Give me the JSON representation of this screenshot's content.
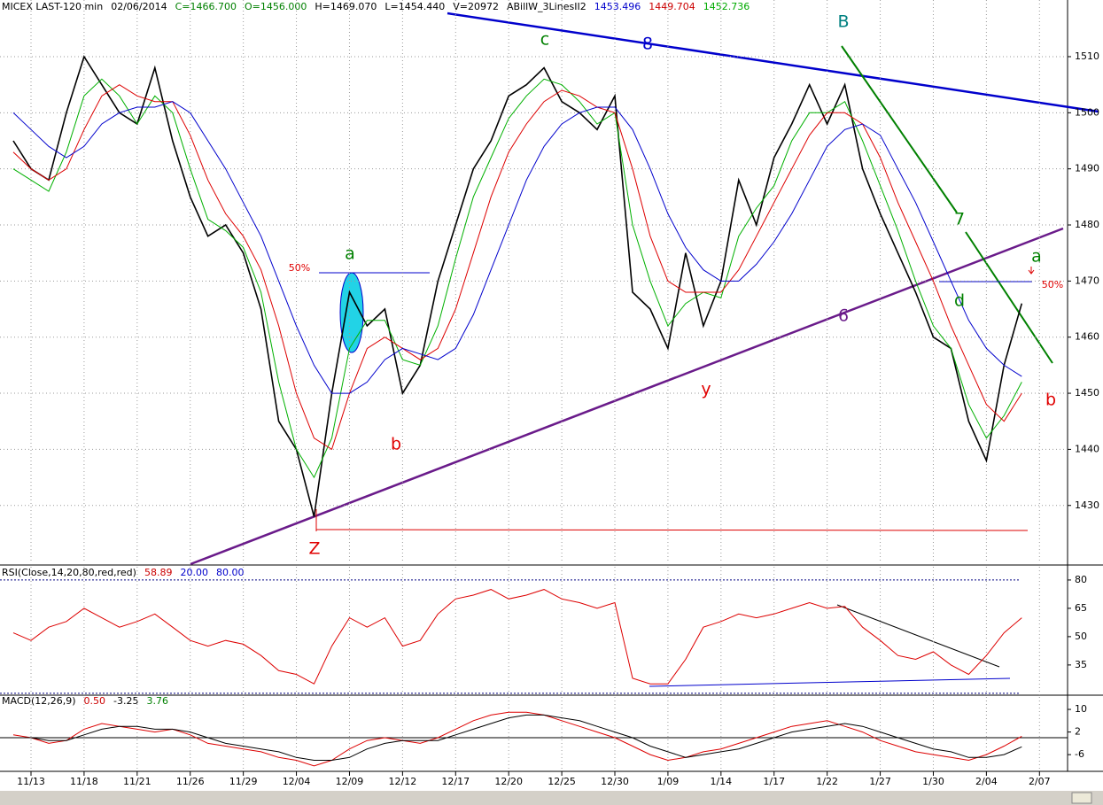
{
  "header": [
    {
      "text": "MICEX LAST-120 min",
      "color": "#000000"
    },
    {
      "text": "02/06/2014",
      "color": "#000000"
    },
    {
      "text": "C=1466.700",
      "color": "#008000"
    },
    {
      "text": "O=1456.000",
      "color": "#008000"
    },
    {
      "text": "H=1469.070",
      "color": "#000000"
    },
    {
      "text": "L=1454.440",
      "color": "#000000"
    },
    {
      "text": "V=20972",
      "color": "#000000"
    },
    {
      "text": "ABillW_3LinesII2",
      "color": "#000000"
    },
    {
      "text": "1453.496",
      "color": "#0000cc"
    },
    {
      "text": "1449.704",
      "color": "#cc0000"
    },
    {
      "text": "1452.736",
      "color": "#00aa00"
    }
  ],
  "annotations": [
    {
      "text": "a",
      "color": "#008000"
    },
    {
      "text": "b",
      "color": "#e00000"
    },
    {
      "text": "c",
      "color": "#008000"
    },
    {
      "text": "B",
      "color": "#008080"
    },
    {
      "text": "y",
      "color": "#e00000"
    },
    {
      "text": "Z",
      "color": "#e00000"
    },
    {
      "text": "a",
      "color": "#008000"
    },
    {
      "text": "b",
      "color": "#e00000"
    },
    {
      "text": "d",
      "color": "#008000"
    },
    {
      "text": "50%",
      "color": "#e00000"
    },
    {
      "text": "50%",
      "color": "#e00000"
    },
    {
      "text": "8",
      "color": "#0000cc"
    },
    {
      "text": "7",
      "color": "#008000"
    },
    {
      "text": "6",
      "color": "#6a1b8a"
    }
  ],
  "chart_data": [
    {
      "type": "line",
      "categories": [
        null,
        "11/13",
        null,
        null,
        "11/18",
        null,
        null,
        "11/21",
        null,
        null,
        "11/26",
        null,
        null,
        "11/29",
        null,
        null,
        "12/04",
        null,
        null,
        "12/09",
        null,
        null,
        "12/12",
        null,
        null,
        "12/17",
        null,
        null,
        "12/20",
        null,
        null,
        "12/25",
        null,
        null,
        "12/30",
        null,
        null,
        "1/09",
        null,
        null,
        "1/14",
        null,
        null,
        "1/17",
        null,
        null,
        "1/22",
        null,
        null,
        "1/27",
        null,
        null,
        "1/30",
        null,
        null,
        "2/04",
        null,
        null,
        "2/07"
      ],
      "ylim": [
        1419.7,
        1520.1
      ],
      "yticks": [
        1430,
        1440,
        1450,
        1460,
        1470,
        1480,
        1490,
        1500,
        1510
      ],
      "grid": true,
      "series": [
        {
          "name": "LAST",
          "color": "#000000",
          "values": [
            1495,
            1490,
            1488,
            1500,
            1510,
            1505,
            1500,
            1498,
            1508,
            1495,
            1485,
            1478,
            1480,
            1475,
            1465,
            1445,
            1440,
            1428,
            1450,
            1468,
            1462,
            1465,
            1450,
            1455,
            1470,
            1480,
            1490,
            1495,
            1503,
            1505,
            1508,
            1502,
            1500,
            1497,
            1503,
            1468,
            1465,
            1458,
            1475,
            1462,
            1470,
            1488,
            1480,
            1492,
            1498,
            1505,
            1498,
            1505,
            1490,
            1482,
            1475,
            1468,
            1460,
            1458,
            1445,
            1438,
            1455,
            1466,
            null
          ]
        },
        {
          "name": "fast",
          "color": "#00b000",
          "values": [
            1490,
            1488,
            1486,
            1493,
            1503,
            1506,
            1503,
            1498,
            1503,
            1500,
            1490,
            1481,
            1479,
            1476,
            1468,
            1452,
            1440,
            1435,
            1442,
            1458,
            1463,
            1463,
            1456,
            1455,
            1462,
            1474,
            1485,
            1492,
            1499,
            1503,
            1506,
            1505,
            1502,
            1498,
            1500,
            1480,
            1470,
            1462,
            1466,
            1468,
            1467,
            1478,
            1483,
            1487,
            1495,
            1500,
            1500,
            1502,
            1495,
            1487,
            1479,
            1470,
            1462,
            1458,
            1448,
            1442,
            1446,
            1452,
            null
          ]
        },
        {
          "name": "mid",
          "color": "#dd0000",
          "values": [
            1493,
            1490,
            1488,
            1490,
            1497,
            1503,
            1505,
            1503,
            1502,
            1502,
            1496,
            1488,
            1482,
            1478,
            1472,
            1462,
            1450,
            1442,
            1440,
            1450,
            1458,
            1460,
            1458,
            1456,
            1458,
            1465,
            1475,
            1485,
            1493,
            1498,
            1502,
            1504,
            1503,
            1501,
            1500,
            1490,
            1478,
            1470,
            1468,
            1468,
            1468,
            1472,
            1478,
            1484,
            1490,
            1496,
            1500,
            1500,
            1498,
            1492,
            1484,
            1477,
            1470,
            1462,
            1455,
            1448,
            1445,
            1450,
            null
          ]
        },
        {
          "name": "slow",
          "color": "#0000cc",
          "values": [
            1500,
            1497,
            1494,
            1492,
            1494,
            1498,
            1500,
            1501,
            1501,
            1502,
            1500,
            1495,
            1490,
            1484,
            1478,
            1470,
            1462,
            1455,
            1450,
            1450,
            1452,
            1456,
            1458,
            1457,
            1456,
            1458,
            1464,
            1472,
            1480,
            1488,
            1494,
            1498,
            1500,
            1501,
            1501,
            1497,
            1490,
            1482,
            1476,
            1472,
            1470,
            1470,
            1473,
            1477,
            1482,
            1488,
            1494,
            1497,
            1498,
            1496,
            1490,
            1484,
            1477,
            1470,
            1463,
            1458,
            1455,
            1453,
            null
          ]
        }
      ]
    },
    {
      "type": "line",
      "legend": [
        {
          "text": "RSI(Close,14,20,80,red,red)",
          "color": "#000000"
        },
        {
          "text": "58.89",
          "color": "#cc0000"
        },
        {
          "text": "20.00",
          "color": "#0000cc"
        },
        {
          "text": "80.00",
          "color": "#0000cc"
        }
      ],
      "ylim": [
        19,
        87
      ],
      "yticks": [
        35,
        50,
        65,
        80
      ],
      "levels": [
        20,
        80
      ],
      "series": [
        {
          "name": "RSI",
          "color": "#dd0000",
          "values": [
            52,
            48,
            55,
            58,
            65,
            60,
            55,
            58,
            62,
            55,
            48,
            45,
            48,
            46,
            40,
            32,
            30,
            25,
            45,
            60,
            55,
            60,
            45,
            48,
            62,
            70,
            72,
            75,
            70,
            72,
            75,
            70,
            68,
            65,
            68,
            28,
            25,
            25,
            38,
            55,
            58,
            62,
            60,
            62,
            65,
            68,
            65,
            66,
            55,
            48,
            40,
            38,
            42,
            35,
            30,
            40,
            52,
            60,
            null
          ]
        }
      ]
    },
    {
      "type": "line",
      "legend": [
        {
          "text": "MACD(12,26,9)",
          "color": "#000000"
        },
        {
          "text": "0.50",
          "color": "#cc0000"
        },
        {
          "text": "-3.25",
          "color": "#000000"
        },
        {
          "text": "3.76",
          "color": "#008000"
        }
      ],
      "ylim": [
        -11.6,
        14.4
      ],
      "yticks": [
        -6,
        2,
        10
      ],
      "zero": 0,
      "series": [
        {
          "name": "MACD",
          "color": "#dd0000",
          "values": [
            1,
            0,
            -2,
            -1,
            3,
            5,
            4,
            3,
            2,
            3,
            1,
            -2,
            -3,
            -4,
            -5,
            -7,
            -8,
            -10,
            -8,
            -4,
            -1,
            0,
            -1,
            -2,
            0,
            3,
            6,
            8,
            9,
            9,
            8,
            6,
            4,
            2,
            0,
            -3,
            -6,
            -8,
            -7,
            -5,
            -4,
            -2,
            0,
            2,
            4,
            5,
            6,
            4,
            2,
            -1,
            -3,
            -5,
            -6,
            -7,
            -8,
            -6,
            -3,
            0.5,
            null
          ]
        },
        {
          "name": "signal",
          "color": "#000000",
          "values": [
            0,
            0,
            -1,
            -1,
            1,
            3,
            4,
            4,
            3,
            3,
            2,
            0,
            -2,
            -3,
            -4,
            -5,
            -7,
            -8,
            -8,
            -7,
            -4,
            -2,
            -1,
            -1,
            -1,
            1,
            3,
            5,
            7,
            8,
            8,
            7,
            6,
            4,
            2,
            0,
            -3,
            -5,
            -7,
            -6,
            -5,
            -4,
            -2,
            0,
            2,
            3,
            4,
            5,
            4,
            2,
            0,
            -2,
            -4,
            -5,
            -7,
            -7,
            -6,
            -3.25,
            null
          ]
        }
      ]
    }
  ]
}
